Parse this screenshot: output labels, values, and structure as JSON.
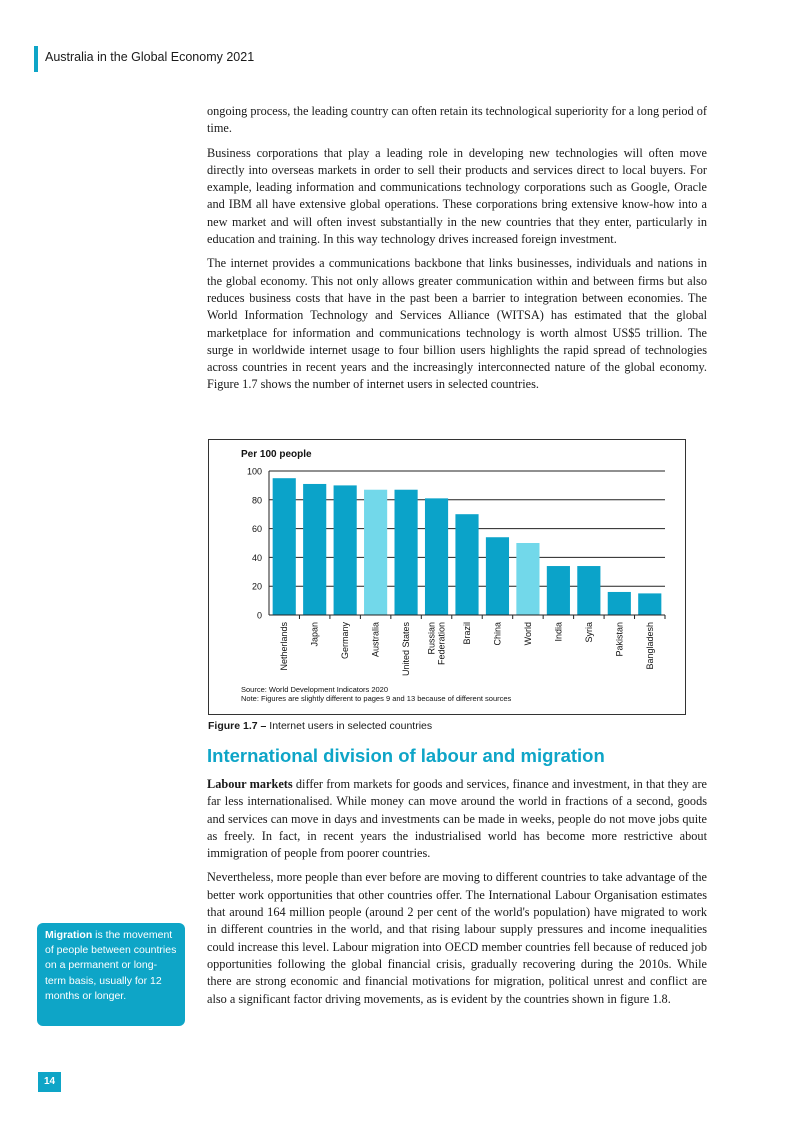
{
  "header": {
    "running_title": "Australia in the Global Economy 2021"
  },
  "paragraphs_top": [
    "ongoing process, the leading country can often retain its technological superiority for a long period of time.",
    "Business corporations that play a leading role in developing new technologies will often move directly into overseas markets in order to sell their products and services direct to local buyers. For example, leading information and communications technology corporations such as Google, Oracle and IBM all have extensive global operations. These corporations bring extensive know-how into a new market and will often invest substantially in the new countries that they enter, particularly in education and training. In this way technology drives increased foreign investment.",
    "The internet provides a communications backbone that links businesses, individuals and nations in the global economy. This not only allows greater communication within and between firms but also reduces business costs that have in the past been a barrier to integration between economies. The World Information Technology and Services Alliance (WITSA) has estimated that the global marketplace for information and communications technology is worth almost US$5 trillion. The surge in worldwide internet usage to four billion users highlights the rapid spread of technologies across countries in recent years and the increasingly interconnected nature of the global economy. Figure 1.7 shows the number of internet users in selected countries."
  ],
  "figure": {
    "caption_number": "Figure 1.7 –",
    "caption_text": " Internet users in selected countries",
    "source": "Source: World Development Indicators 2020",
    "note": "Note: Figures are slightly different to pages 9 and 13 because of different sources"
  },
  "chart_data": {
    "type": "bar",
    "ylabel": "Per 100 people",
    "ylim": [
      0,
      100
    ],
    "yticks": [
      0,
      20,
      40,
      60,
      80,
      100
    ],
    "grid": true,
    "categories": [
      "Netherlands",
      "Japan",
      "Germany",
      "Australia",
      "United States",
      "Russian Federation",
      "Brazil",
      "China",
      "World",
      "India",
      "Syria",
      "Pakistan",
      "Bangladesh"
    ],
    "values": [
      95,
      91,
      90,
      87,
      87,
      81,
      70,
      54,
      50,
      34,
      34,
      16,
      15
    ],
    "highlighted": [
      "Australia",
      "World"
    ],
    "colors": {
      "bar": "#0ba3c9",
      "highlight": "#72d8ea"
    }
  },
  "section": {
    "title": "International division of labour and migration"
  },
  "paragraphs_bottom": [
    {
      "lead": "Labour markets",
      "text": " differ from markets for goods and services, finance and investment, in that they are far less internationalised. While money can move around the world in fractions of a second, goods and services can move in days and investments can be made in weeks, people do not move jobs quite as freely. In fact, in recent years the industrialised world has become more restrictive about immigration of people from poorer countries."
    },
    {
      "lead": "",
      "text": "Nevertheless, more people than ever before are moving to different countries to take advantage of the better work opportunities that other countries offer. The International Labour Organisation estimates that around 164 million people (around 2 per cent of the world's population) have migrated to work in different countries in the world, and that rising labour supply pressures and income inequalities could increase this level. Labour migration into OECD member countries fell because of reduced job opportunities following the global financial crisis, gradually recovering during the 2010s. While there are strong economic and financial motivations for migration, political unrest and conflict are also a significant factor driving movements, as is evident by the countries shown in figure 1.8."
    }
  ],
  "margin_note": {
    "term": "Migration",
    "definition": " is the movement of people between countries on a permanent or long-term basis, usually for 12 months or longer."
  },
  "footer": {
    "page_number": "14"
  },
  "colors": {
    "accent": "#0ea5c7"
  }
}
